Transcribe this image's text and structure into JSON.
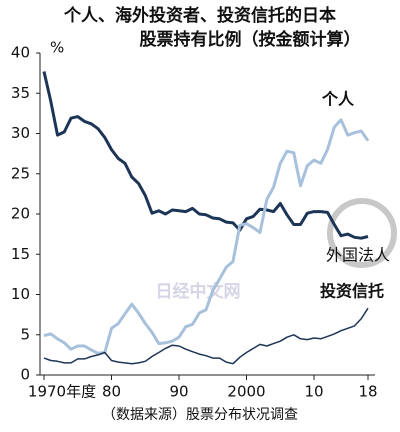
{
  "chart_data": {
    "type": "line",
    "title": "个人、海外投资者、投资信托的日本",
    "subtitle": "股票持有比例（按金额计算）",
    "y_label": "%",
    "source": "（数据来源）股票分布状况调查",
    "watermark": "日经中文网",
    "x": [
      1970,
      1971,
      1972,
      1973,
      1974,
      1975,
      1976,
      1977,
      1978,
      1979,
      1980,
      1981,
      1982,
      1983,
      1984,
      1985,
      1986,
      1987,
      1988,
      1989,
      1990,
      1991,
      1992,
      1993,
      1994,
      1995,
      1996,
      1997,
      1998,
      1999,
      2000,
      2001,
      2002,
      2003,
      2004,
      2005,
      2006,
      2007,
      2008,
      2009,
      2010,
      2011,
      2012,
      2013,
      2014,
      2015,
      2016,
      2017,
      2018
    ],
    "series": [
      {
        "name": "个人",
        "color": "#1c3557",
        "width": 3,
        "values": [
          37.7,
          34.0,
          29.8,
          30.2,
          31.9,
          32.1,
          31.5,
          31.2,
          30.6,
          29.5,
          28.0,
          26.9,
          26.3,
          24.6,
          23.8,
          22.3,
          20.1,
          20.4,
          20.0,
          20.5,
          20.4,
          20.3,
          20.7,
          20.0,
          19.9,
          19.5,
          19.4,
          19.0,
          18.9,
          18.0,
          19.4,
          19.7,
          20.6,
          20.5,
          20.3,
          21.3,
          19.9,
          18.7,
          18.7,
          20.1,
          20.3,
          20.3,
          20.2,
          18.7,
          17.3,
          17.5,
          17.1,
          17.0,
          17.2
        ]
      },
      {
        "name": "外国法人",
        "color": "#a7c0db",
        "width": 3,
        "values": [
          4.9,
          5.1,
          4.5,
          4.0,
          3.2,
          3.6,
          3.6,
          3.1,
          2.7,
          2.8,
          5.8,
          6.4,
          7.6,
          8.8,
          7.7,
          6.4,
          5.3,
          3.9,
          4.0,
          4.2,
          4.7,
          6.0,
          6.3,
          7.7,
          8.1,
          10.5,
          11.9,
          13.4,
          14.1,
          18.6,
          18.8,
          18.3,
          17.7,
          21.8,
          23.3,
          26.3,
          27.8,
          27.6,
          23.5,
          26.0,
          26.7,
          26.3,
          28.0,
          30.8,
          31.7,
          29.8,
          30.1,
          30.3,
          29.1
        ]
      },
      {
        "name": "投资信托",
        "color": "#1c3557",
        "width": 1.5,
        "values": [
          2.1,
          1.8,
          1.7,
          1.5,
          1.5,
          2.0,
          2.0,
          2.3,
          2.5,
          2.8,
          1.8,
          1.6,
          1.5,
          1.4,
          1.5,
          1.7,
          2.3,
          2.8,
          3.3,
          3.7,
          3.6,
          3.2,
          2.9,
          2.6,
          2.4,
          2.1,
          2.1,
          1.6,
          1.4,
          2.2,
          2.8,
          3.3,
          3.8,
          3.6,
          3.9,
          4.2,
          4.7,
          5.0,
          4.5,
          4.4,
          4.6,
          4.5,
          4.8,
          5.1,
          5.5,
          5.8,
          6.1,
          7.0,
          8.3
        ]
      }
    ],
    "xlim": [
      1970,
      2018
    ],
    "xticks": [
      {
        "value": 1970,
        "label": "1970年度"
      },
      {
        "value": 1980,
        "label": "80"
      },
      {
        "value": 1990,
        "label": "90"
      },
      2000,
      {
        "value": 2010,
        "label": "10"
      },
      {
        "value": 2018,
        "label": "18"
      }
    ],
    "ylim": [
      0,
      40
    ],
    "yticks": [
      0,
      5,
      10,
      15,
      20,
      25,
      30,
      35,
      40
    ]
  }
}
